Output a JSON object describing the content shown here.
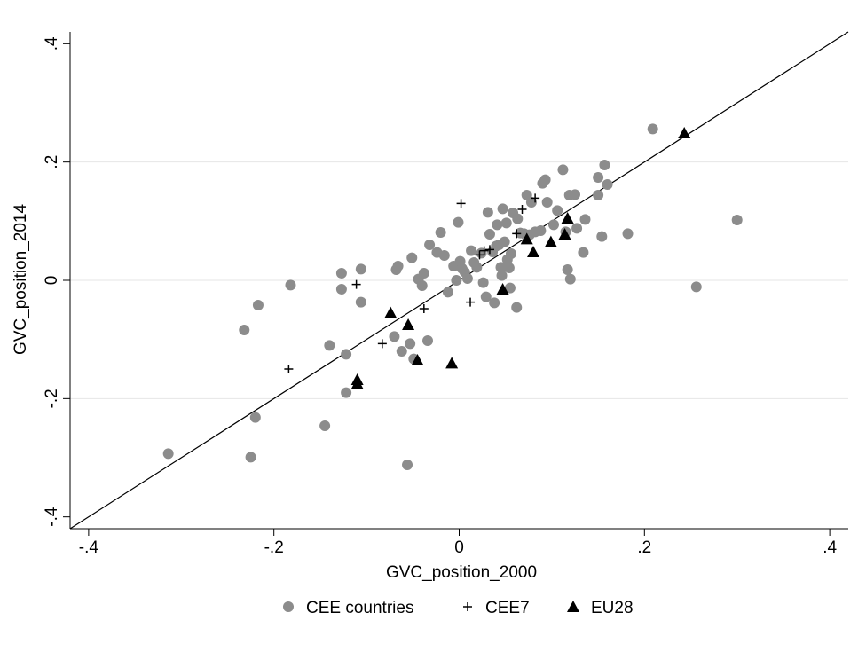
{
  "chart_data": {
    "type": "scatter",
    "xlabel": "GVC_position_2000",
    "ylabel": "GVC_position_2014",
    "xlim": [
      -0.42,
      0.42
    ],
    "ylim": [
      -0.42,
      0.42
    ],
    "x_ticks": [
      -0.4,
      -0.2,
      0,
      0.2,
      0.4
    ],
    "x_tick_labels": [
      "-.4",
      "-.2",
      "0",
      ".2",
      ".4"
    ],
    "y_ticks": [
      -0.4,
      -0.2,
      0,
      0.2,
      0.4
    ],
    "y_tick_labels": [
      "-.4",
      "-.2",
      "0",
      ".2",
      ".4"
    ],
    "grid": true,
    "legend_position": "bottom",
    "reference_line": {
      "type": "45-degree",
      "from": [
        -0.42,
        -0.42
      ],
      "to": [
        0.42,
        0.42
      ]
    },
    "colors": {
      "CEE countries": "#8c8c8c",
      "CEE7": "#000000",
      "EU28": "#000000",
      "grid": "#e6e6e6"
    },
    "series": [
      {
        "name": "CEE countries",
        "marker": "circle",
        "points": [
          [
            -0.314,
            -0.293
          ],
          [
            -0.232,
            -0.084
          ],
          [
            -0.225,
            -0.299
          ],
          [
            -0.22,
            -0.232
          ],
          [
            -0.217,
            -0.042
          ],
          [
            -0.182,
            -0.008
          ],
          [
            -0.145,
            -0.246
          ],
          [
            -0.14,
            -0.11
          ],
          [
            -0.127,
            0.012
          ],
          [
            -0.127,
            -0.015
          ],
          [
            -0.122,
            -0.125
          ],
          [
            -0.122,
            -0.19
          ],
          [
            -0.106,
            0.019
          ],
          [
            -0.106,
            -0.037
          ],
          [
            -0.07,
            -0.095
          ],
          [
            -0.068,
            0.018
          ],
          [
            -0.066,
            0.024
          ],
          [
            -0.062,
            -0.12
          ],
          [
            -0.056,
            -0.312
          ],
          [
            -0.053,
            -0.107
          ],
          [
            -0.051,
            0.038
          ],
          [
            -0.049,
            -0.133
          ],
          [
            -0.044,
            0.002
          ],
          [
            -0.04,
            -0.009
          ],
          [
            -0.038,
            0.012
          ],
          [
            -0.034,
            -0.102
          ],
          [
            -0.032,
            0.06
          ],
          [
            -0.024,
            0.047
          ],
          [
            -0.02,
            0.081
          ],
          [
            -0.016,
            0.042
          ],
          [
            -0.012,
            -0.02
          ],
          [
            -0.006,
            0.024
          ],
          [
            -0.003,
            0.0
          ],
          [
            -0.001,
            0.098
          ],
          [
            0.001,
            0.032
          ],
          [
            0.003,
            0.02
          ],
          [
            0.006,
            0.014
          ],
          [
            0.009,
            0.003
          ],
          [
            0.013,
            0.05
          ],
          [
            0.016,
            0.03
          ],
          [
            0.019,
            0.022
          ],
          [
            0.024,
            0.046
          ],
          [
            0.026,
            -0.004
          ],
          [
            0.029,
            -0.028
          ],
          [
            0.031,
            0.115
          ],
          [
            0.033,
            0.078
          ],
          [
            0.036,
            0.048
          ],
          [
            0.038,
            -0.038
          ],
          [
            0.04,
            0.058
          ],
          [
            0.041,
            0.094
          ],
          [
            0.043,
            0.06
          ],
          [
            0.045,
            0.022
          ],
          [
            0.046,
            0.008
          ],
          [
            0.047,
            0.121
          ],
          [
            0.049,
            0.065
          ],
          [
            0.051,
            0.097
          ],
          [
            0.052,
            0.035
          ],
          [
            0.054,
            0.021
          ],
          [
            0.055,
            -0.013
          ],
          [
            0.056,
            0.045
          ],
          [
            0.058,
            0.114
          ],
          [
            0.062,
            -0.046
          ],
          [
            0.063,
            0.104
          ],
          [
            0.066,
            0.08
          ],
          [
            0.07,
            0.079
          ],
          [
            0.073,
            0.144
          ],
          [
            0.076,
            0.077
          ],
          [
            0.078,
            0.132
          ],
          [
            0.082,
            0.082
          ],
          [
            0.088,
            0.084
          ],
          [
            0.09,
            0.164
          ],
          [
            0.093,
            0.17
          ],
          [
            0.095,
            0.132
          ],
          [
            0.102,
            0.094
          ],
          [
            0.106,
            0.118
          ],
          [
            0.112,
            0.187
          ],
          [
            0.115,
            0.082
          ],
          [
            0.117,
            0.018
          ],
          [
            0.119,
            0.144
          ],
          [
            0.12,
            0.002
          ],
          [
            0.125,
            0.145
          ],
          [
            0.127,
            0.088
          ],
          [
            0.134,
            0.047
          ],
          [
            0.136,
            0.103
          ],
          [
            0.15,
            0.144
          ],
          [
            0.15,
            0.174
          ],
          [
            0.154,
            0.074
          ],
          [
            0.157,
            0.195
          ],
          [
            0.16,
            0.162
          ],
          [
            0.182,
            0.079
          ],
          [
            0.209,
            0.256
          ],
          [
            0.256,
            -0.011
          ],
          [
            0.3,
            0.102
          ]
        ]
      },
      {
        "name": "CEE7",
        "marker": "plus",
        "points": [
          [
            -0.184,
            -0.15
          ],
          [
            -0.111,
            -0.007
          ],
          [
            -0.083,
            -0.107
          ],
          [
            -0.038,
            -0.048
          ],
          [
            0.002,
            0.13
          ],
          [
            0.012,
            -0.037
          ],
          [
            0.022,
            0.043
          ],
          [
            0.027,
            0.05
          ],
          [
            0.033,
            0.052
          ],
          [
            0.062,
            0.079
          ],
          [
            0.068,
            0.12
          ],
          [
            0.082,
            0.139
          ]
        ]
      },
      {
        "name": "EU28",
        "marker": "triangle",
        "points": [
          [
            -0.11,
            -0.168
          ],
          [
            -0.11,
            -0.175
          ],
          [
            -0.074,
            -0.055
          ],
          [
            -0.055,
            -0.075
          ],
          [
            -0.045,
            -0.135
          ],
          [
            -0.008,
            -0.14
          ],
          [
            0.047,
            -0.015
          ],
          [
            0.073,
            0.07
          ],
          [
            0.08,
            0.048
          ],
          [
            0.099,
            0.065
          ],
          [
            0.114,
            0.078
          ],
          [
            0.117,
            0.105
          ],
          [
            0.243,
            0.249
          ]
        ]
      }
    ]
  }
}
